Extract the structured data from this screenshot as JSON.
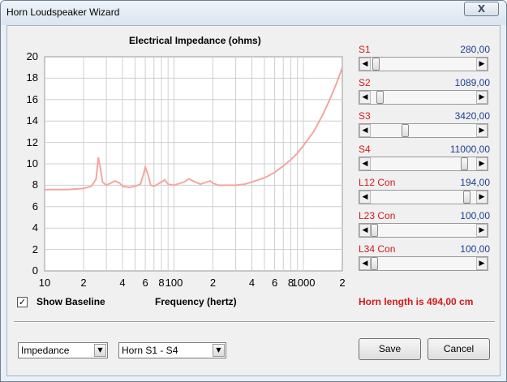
{
  "window": {
    "title": "Horn Loudspeaker Wizard",
    "close_glyph": "X"
  },
  "chart": {
    "title": "Electrical Impedance (ohms)",
    "xlabel": "Frequency (hertz)",
    "y_ticks": [
      "20",
      "18",
      "16",
      "14",
      "12",
      "10",
      "8",
      "6",
      "4",
      "2",
      "0"
    ],
    "x_ticks": [
      "10",
      "2",
      "4",
      "6",
      "8",
      "100",
      "2",
      "4",
      "6",
      "8",
      "1000",
      "2"
    ],
    "line_color": "#f4a6a0",
    "grid_color": "#cfcfcf"
  },
  "chart_data": {
    "type": "line",
    "title": "Electrical Impedance (ohms)",
    "xlabel": "Frequency (hertz)",
    "ylabel": "",
    "x_scale": "log",
    "xlim": [
      10,
      2000
    ],
    "ylim": [
      0,
      20
    ],
    "grid": true,
    "series": [
      {
        "x": [
          10,
          15,
          20,
          23,
          25,
          26,
          27,
          28,
          30,
          35,
          38,
          40,
          45,
          50,
          55,
          58,
          60,
          63,
          66,
          70,
          80,
          85,
          90,
          100,
          120,
          130,
          140,
          160,
          180,
          190,
          200,
          220,
          250,
          300,
          350,
          400,
          500,
          600,
          700,
          800,
          900,
          1000,
          1200,
          1400,
          1600,
          1800,
          2000
        ],
        "y": [
          7.6,
          7.6,
          7.7,
          7.9,
          8.6,
          10.6,
          9.6,
          8.3,
          8.0,
          8.4,
          8.2,
          7.9,
          7.8,
          7.9,
          8.1,
          9.0,
          9.7,
          9.0,
          8.0,
          7.9,
          8.3,
          8.5,
          8.1,
          8.0,
          8.3,
          8.6,
          8.4,
          8.1,
          8.3,
          8.4,
          8.2,
          8.0,
          8.0,
          8.0,
          8.1,
          8.3,
          8.7,
          9.2,
          9.8,
          10.4,
          11.0,
          11.7,
          13.0,
          14.5,
          16.0,
          17.5,
          19.0
        ]
      }
    ]
  },
  "baseline": {
    "checked_glyph": "✓",
    "label": "Show Baseline"
  },
  "sliders": [
    {
      "name": "S1",
      "value": "280,00",
      "pos": 0.02
    },
    {
      "name": "S2",
      "value": "1089,00",
      "pos": 0.06
    },
    {
      "name": "S3",
      "value": "3420,00",
      "pos": 0.31
    },
    {
      "name": "S4",
      "value": "11000,00",
      "pos": 0.92
    },
    {
      "name": "L12  Con",
      "value": "194,00",
      "pos": 0.94
    },
    {
      "name": "L23  Con",
      "value": "100,00",
      "pos": 0.0
    },
    {
      "name": "L34  Con",
      "value": "100,00",
      "pos": 0.0
    }
  ],
  "horn_length": "Horn length is 494,00 cm",
  "combo_mode": {
    "value": "Impedance"
  },
  "combo_section": {
    "value": "Horn S1 - S4"
  },
  "buttons": {
    "save": "Save",
    "cancel": "Cancel"
  },
  "arrows": {
    "left": "◀",
    "right": "▶",
    "down": "▼"
  }
}
